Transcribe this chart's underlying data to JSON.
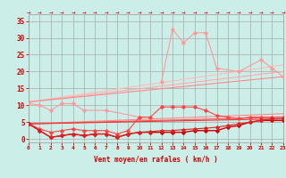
{
  "xlabel": "Vent moyen/en rafales ( km/h )",
  "bg_color": "#cceee8",
  "grid_color": "#aaaaaa",
  "xmin": 0,
  "xmax": 23,
  "ymin": -1,
  "ymax": 37,
  "yticks": [
    0,
    5,
    10,
    15,
    20,
    25,
    30,
    35
  ],
  "xticks": [
    0,
    1,
    2,
    3,
    4,
    5,
    6,
    7,
    8,
    9,
    10,
    11,
    12,
    13,
    14,
    15,
    16,
    17,
    18,
    19,
    20,
    21,
    22,
    23
  ],
  "series": [
    {
      "color": "#ff9999",
      "lw": 0.8,
      "marker": "D",
      "ms": 1.8,
      "data": [
        10.5,
        10.0,
        8.5,
        10.5,
        10.5,
        8.5,
        null,
        8.5,
        null,
        null,
        6.5,
        null,
        null,
        null,
        null,
        null,
        null,
        null,
        null,
        null,
        null,
        null,
        null,
        null
      ]
    },
    {
      "color": "#ff9999",
      "lw": 0.8,
      "marker": "D",
      "ms": 1.8,
      "data": [
        null,
        null,
        null,
        null,
        null,
        null,
        null,
        null,
        null,
        null,
        null,
        null,
        17.0,
        32.5,
        28.5,
        31.5,
        31.5,
        21.0,
        null,
        20.0,
        null,
        23.5,
        21.0,
        18.5
      ]
    },
    {
      "color": "#ff4444",
      "lw": 0.8,
      "marker": "D",
      "ms": 1.8,
      "data": [
        4.5,
        3.0,
        2.0,
        2.5,
        3.0,
        2.5,
        2.5,
        2.5,
        1.5,
        2.5,
        6.5,
        6.5,
        9.5,
        9.5,
        9.5,
        9.5,
        8.5,
        7.0,
        6.5,
        6.0,
        6.5,
        6.5,
        6.5,
        6.5
      ]
    },
    {
      "color": "#cc0000",
      "lw": 1.0,
      "marker": "D",
      "ms": 1.8,
      "data": [
        4.5,
        2.5,
        0.5,
        1.0,
        1.5,
        1.0,
        1.5,
        1.5,
        0.5,
        1.5,
        2.0,
        2.0,
        2.0,
        2.0,
        2.0,
        2.5,
        2.5,
        2.5,
        3.5,
        4.0,
        5.0,
        5.5,
        5.5,
        5.5
      ]
    },
    {
      "color": "#dd2222",
      "lw": 0.8,
      "marker": "D",
      "ms": 1.8,
      "data": [
        4.5,
        2.5,
        0.5,
        1.0,
        1.5,
        1.0,
        1.5,
        1.5,
        0.5,
        1.5,
        2.0,
        2.2,
        2.5,
        2.5,
        2.8,
        3.0,
        3.2,
        3.5,
        4.0,
        4.5,
        5.0,
        5.5,
        6.0,
        6.0
      ]
    }
  ],
  "trend_lines": [
    {
      "color": "#ffbbbb",
      "lw": 0.8,
      "x0": 0,
      "y0": 11.0,
      "x1": 23,
      "y1": 22.0
    },
    {
      "color": "#ffaaaa",
      "lw": 0.8,
      "x0": 0,
      "y0": 11.0,
      "x1": 23,
      "y1": 20.0
    },
    {
      "color": "#ff8888",
      "lw": 0.8,
      "x0": 0,
      "y0": 11.0,
      "x1": 23,
      "y1": 18.5
    },
    {
      "color": "#ff8888",
      "lw": 0.8,
      "x0": 0,
      "y0": 4.5,
      "x1": 23,
      "y1": 7.5
    },
    {
      "color": "#ff5555",
      "lw": 0.8,
      "x0": 0,
      "y0": 4.5,
      "x1": 23,
      "y1": 6.5
    },
    {
      "color": "#ee3333",
      "lw": 0.8,
      "x0": 0,
      "y0": 4.5,
      "x1": 23,
      "y1": 6.0
    }
  ],
  "xlabel_fontsize": 5.5,
  "tick_fontsize_x": 4.5,
  "tick_fontsize_y": 5.5,
  "tick_color": "#cc0000",
  "label_color": "#cc0000"
}
